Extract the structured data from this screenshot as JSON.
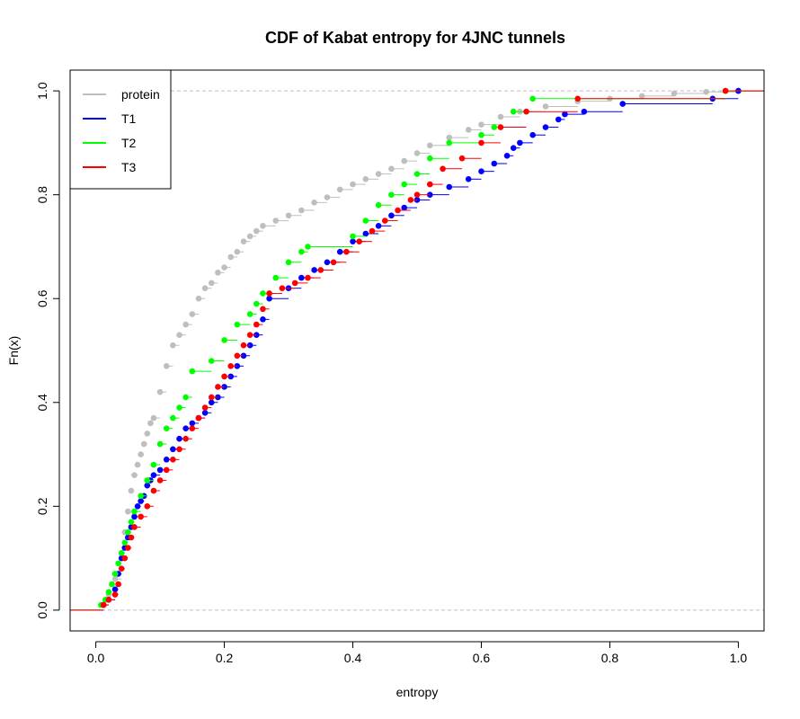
{
  "chart_data": {
    "type": "line",
    "title": "CDF of Kabat entropy for 4JNC  tunnels",
    "xlabel": "entropy",
    "ylabel": "Fn(x)",
    "xlim": [
      -0.04,
      1.04
    ],
    "ylim": [
      -0.04,
      1.04
    ],
    "x_ticks": [
      0.0,
      0.2,
      0.4,
      0.6,
      0.8,
      1.0
    ],
    "x_tick_labels": [
      "0.0",
      "0.2",
      "0.4",
      "0.6",
      "0.8",
      "1.0"
    ],
    "y_ticks": [
      0.0,
      0.2,
      0.4,
      0.6,
      0.8,
      1.0
    ],
    "y_tick_labels": [
      "0.0",
      "0.2",
      "0.4",
      "0.6",
      "0.8",
      "1.0"
    ],
    "reference_lines_y": [
      0.0,
      1.0
    ],
    "grid": false,
    "legend_position": "top-left",
    "legend": [
      {
        "name": "protein",
        "color": "#bebebe"
      },
      {
        "name": "T1",
        "color": "#0000ff"
      },
      {
        "name": "T2",
        "color": "#00ff00"
      },
      {
        "name": "T3",
        "color": "#ff0000"
      }
    ],
    "series": [
      {
        "name": "protein",
        "color": "#bebebe",
        "step": "ecdf",
        "x": [
          0.01,
          0.02,
          0.03,
          0.04,
          0.045,
          0.05,
          0.055,
          0.06,
          0.065,
          0.07,
          0.075,
          0.08,
          0.085,
          0.09,
          0.1,
          0.11,
          0.12,
          0.13,
          0.14,
          0.15,
          0.16,
          0.17,
          0.18,
          0.19,
          0.2,
          0.21,
          0.22,
          0.23,
          0.24,
          0.25,
          0.26,
          0.28,
          0.3,
          0.32,
          0.34,
          0.36,
          0.38,
          0.4,
          0.42,
          0.44,
          0.46,
          0.48,
          0.5,
          0.52,
          0.55,
          0.58,
          0.6,
          0.63,
          0.66,
          0.7,
          0.75,
          0.8,
          0.85,
          0.9,
          0.95,
          1.0
        ],
        "y": [
          0.01,
          0.03,
          0.06,
          0.11,
          0.15,
          0.19,
          0.23,
          0.26,
          0.28,
          0.3,
          0.32,
          0.34,
          0.36,
          0.37,
          0.42,
          0.47,
          0.51,
          0.53,
          0.55,
          0.57,
          0.6,
          0.62,
          0.63,
          0.65,
          0.66,
          0.68,
          0.69,
          0.71,
          0.72,
          0.73,
          0.74,
          0.75,
          0.76,
          0.77,
          0.785,
          0.795,
          0.81,
          0.82,
          0.83,
          0.84,
          0.85,
          0.865,
          0.88,
          0.895,
          0.91,
          0.925,
          0.935,
          0.95,
          0.96,
          0.97,
          0.98,
          0.985,
          0.99,
          0.995,
          0.998,
          1.0
        ]
      },
      {
        "name": "T1",
        "color": "#0000ff",
        "step": "ecdf",
        "x": [
          0.012,
          0.02,
          0.03,
          0.035,
          0.04,
          0.045,
          0.05,
          0.055,
          0.06,
          0.065,
          0.07,
          0.075,
          0.08,
          0.085,
          0.09,
          0.1,
          0.11,
          0.12,
          0.13,
          0.14,
          0.15,
          0.16,
          0.17,
          0.18,
          0.19,
          0.2,
          0.21,
          0.22,
          0.23,
          0.24,
          0.25,
          0.26,
          0.27,
          0.3,
          0.32,
          0.34,
          0.36,
          0.38,
          0.4,
          0.42,
          0.44,
          0.46,
          0.48,
          0.5,
          0.52,
          0.55,
          0.58,
          0.6,
          0.62,
          0.64,
          0.65,
          0.66,
          0.68,
          0.7,
          0.72,
          0.73,
          0.76,
          0.82,
          0.96,
          1.0
        ],
        "y": [
          0.01,
          0.02,
          0.04,
          0.07,
          0.1,
          0.12,
          0.14,
          0.16,
          0.18,
          0.2,
          0.21,
          0.22,
          0.24,
          0.25,
          0.26,
          0.27,
          0.29,
          0.31,
          0.33,
          0.35,
          0.36,
          0.37,
          0.38,
          0.4,
          0.41,
          0.43,
          0.45,
          0.47,
          0.49,
          0.51,
          0.53,
          0.56,
          0.6,
          0.62,
          0.64,
          0.655,
          0.67,
          0.69,
          0.71,
          0.725,
          0.74,
          0.76,
          0.775,
          0.79,
          0.8,
          0.815,
          0.83,
          0.845,
          0.86,
          0.875,
          0.89,
          0.9,
          0.915,
          0.93,
          0.945,
          0.955,
          0.96,
          0.975,
          0.985,
          1.0
        ]
      },
      {
        "name": "T2",
        "color": "#00ff00",
        "step": "ecdf",
        "x": [
          0.008,
          0.015,
          0.02,
          0.025,
          0.03,
          0.035,
          0.04,
          0.045,
          0.05,
          0.055,
          0.06,
          0.07,
          0.08,
          0.09,
          0.1,
          0.11,
          0.12,
          0.13,
          0.14,
          0.15,
          0.18,
          0.2,
          0.22,
          0.24,
          0.25,
          0.26,
          0.28,
          0.3,
          0.32,
          0.33,
          0.4,
          0.42,
          0.44,
          0.46,
          0.48,
          0.5,
          0.52,
          0.55,
          0.6,
          0.62,
          0.65,
          0.68,
          0.98
        ],
        "y": [
          0.01,
          0.02,
          0.035,
          0.05,
          0.07,
          0.09,
          0.11,
          0.13,
          0.15,
          0.17,
          0.19,
          0.22,
          0.25,
          0.28,
          0.32,
          0.35,
          0.37,
          0.39,
          0.41,
          0.46,
          0.48,
          0.52,
          0.55,
          0.57,
          0.59,
          0.61,
          0.64,
          0.67,
          0.69,
          0.7,
          0.72,
          0.75,
          0.78,
          0.8,
          0.82,
          0.84,
          0.87,
          0.9,
          0.915,
          0.93,
          0.96,
          0.985,
          1.0
        ]
      },
      {
        "name": "T3",
        "color": "#ff0000",
        "step": "ecdf",
        "x": [
          0.012,
          0.02,
          0.03,
          0.035,
          0.04,
          0.045,
          0.05,
          0.055,
          0.06,
          0.07,
          0.08,
          0.09,
          0.1,
          0.11,
          0.12,
          0.13,
          0.14,
          0.15,
          0.16,
          0.17,
          0.18,
          0.19,
          0.2,
          0.21,
          0.22,
          0.23,
          0.24,
          0.25,
          0.26,
          0.27,
          0.29,
          0.31,
          0.33,
          0.35,
          0.37,
          0.39,
          0.41,
          0.43,
          0.45,
          0.47,
          0.49,
          0.5,
          0.52,
          0.54,
          0.57,
          0.6,
          0.63,
          0.67,
          0.75,
          0.98
        ],
        "y": [
          0.01,
          0.02,
          0.03,
          0.05,
          0.08,
          0.1,
          0.12,
          0.14,
          0.16,
          0.18,
          0.2,
          0.23,
          0.25,
          0.27,
          0.29,
          0.31,
          0.33,
          0.35,
          0.37,
          0.39,
          0.41,
          0.43,
          0.45,
          0.47,
          0.49,
          0.51,
          0.53,
          0.55,
          0.58,
          0.61,
          0.62,
          0.63,
          0.64,
          0.655,
          0.67,
          0.69,
          0.71,
          0.73,
          0.75,
          0.77,
          0.79,
          0.8,
          0.82,
          0.85,
          0.87,
          0.9,
          0.93,
          0.96,
          0.985,
          1.0
        ]
      }
    ]
  }
}
